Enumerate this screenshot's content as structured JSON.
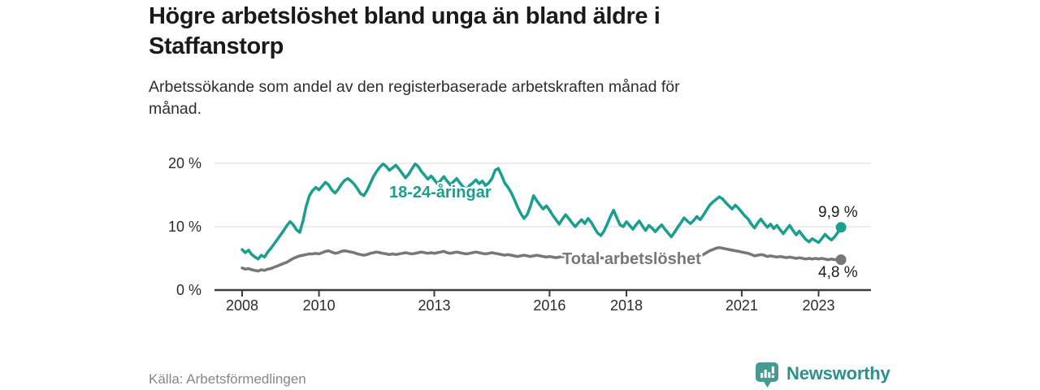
{
  "header": {
    "title": "Högre arbetslöshet bland unga än bland äldre i\nStaffanstorp",
    "subtitle": "Arbetssökande som andel av den registerbaserade arbetskraften månad för\nmånad."
  },
  "footer": {
    "source": "Källa: Arbetsförmedlingen",
    "brand_name": "Newsworthy",
    "brand_text_color": "#2d918b",
    "brand_icon_color": "#479a93"
  },
  "chart_data": {
    "type": "line",
    "x_unit": "month",
    "x_start": "2008-01",
    "x_end": "2023-08",
    "grid": "horizontal",
    "ylim": [
      0,
      22
    ],
    "axis_color": "#3c3c3c",
    "grid_color": "#d9d9d9",
    "y_ticks": [
      {
        "label": "0 %",
        "value": 0
      },
      {
        "label": "10 %",
        "value": 10
      },
      {
        "label": "20 %",
        "value": 20
      }
    ],
    "x_ticks": [
      {
        "label": "2008",
        "year": 2008
      },
      {
        "label": "2010",
        "year": 2010
      },
      {
        "label": "2013",
        "year": 2013
      },
      {
        "label": "2016",
        "year": 2016
      },
      {
        "label": "2018",
        "year": 2018
      },
      {
        "label": "2021",
        "year": 2021
      },
      {
        "label": "2023",
        "year": 2023
      }
    ],
    "series": [
      {
        "name": "18-24-åringar",
        "color": "#1a9e8d",
        "end_label": "9,9 %",
        "end_value": 9.9,
        "values": [
          6.4,
          5.9,
          6.3,
          5.6,
          5.2,
          4.9,
          5.5,
          5.2,
          6.0,
          6.6,
          7.3,
          8.0,
          8.7,
          9.4,
          10.2,
          10.8,
          10.3,
          9.5,
          9.1,
          10.9,
          13.2,
          14.9,
          15.7,
          16.2,
          15.8,
          16.4,
          17.0,
          16.6,
          15.8,
          15.3,
          15.9,
          16.7,
          17.3,
          17.6,
          17.2,
          16.7,
          16.0,
          15.2,
          14.9,
          15.7,
          16.8,
          17.9,
          18.7,
          19.4,
          19.9,
          19.5,
          18.9,
          19.3,
          19.7,
          19.1,
          18.4,
          17.7,
          18.3,
          19.1,
          19.9,
          19.5,
          18.7,
          18.1,
          17.5,
          18.0,
          17.4,
          16.8,
          17.3,
          17.9,
          17.2,
          16.6,
          17.1,
          17.6,
          16.9,
          16.3,
          15.9,
          16.5,
          16.9,
          17.4,
          16.8,
          17.2,
          16.5,
          16.9,
          17.6,
          18.9,
          19.2,
          18.1,
          16.9,
          16.2,
          15.4,
          14.3,
          13.1,
          12.1,
          11.3,
          11.9,
          13.2,
          14.9,
          14.1,
          13.4,
          12.8,
          13.3,
          12.6,
          11.8,
          11.1,
          10.4,
          11.2,
          11.9,
          11.3,
          10.6,
          10.0,
          10.6,
          11.1,
          10.5,
          11.3,
          10.7,
          9.8,
          9.0,
          8.6,
          9.3,
          10.4,
          11.6,
          12.6,
          11.4,
          10.3,
          10.0,
          10.8,
          10.2,
          9.6,
          10.3,
          10.9,
          10.1,
          9.4,
          10.2,
          9.8,
          9.2,
          9.8,
          10.3,
          9.6,
          9.0,
          8.4,
          9.1,
          9.9,
          10.6,
          11.4,
          10.9,
          10.5,
          11.0,
          11.6,
          11.1,
          11.8,
          12.6,
          13.4,
          13.9,
          14.3,
          14.7,
          14.4,
          13.8,
          13.3,
          12.8,
          13.4,
          12.9,
          12.3,
          11.7,
          11.2,
          10.4,
          9.8,
          10.6,
          11.2,
          10.5,
          9.9,
          10.4,
          9.7,
          10.2,
          9.5,
          8.9,
          9.6,
          10.2,
          9.4,
          8.7,
          9.3,
          8.6,
          8.0,
          7.6,
          8.1,
          7.8,
          7.5,
          8.1,
          8.8,
          8.3,
          7.9,
          8.4,
          9.1,
          9.9
        ]
      },
      {
        "name": "Total arbetslöshet",
        "color": "#76777a",
        "end_label": "4,8 %",
        "end_value": 4.8,
        "values": [
          3.5,
          3.3,
          3.4,
          3.2,
          3.1,
          3.0,
          3.2,
          3.1,
          3.3,
          3.4,
          3.6,
          3.8,
          4.0,
          4.2,
          4.4,
          4.7,
          5.0,
          5.2,
          5.4,
          5.5,
          5.6,
          5.7,
          5.7,
          5.8,
          5.7,
          5.9,
          6.1,
          6.2,
          6.0,
          5.8,
          5.9,
          6.1,
          6.2,
          6.1,
          6.0,
          5.9,
          5.7,
          5.6,
          5.5,
          5.6,
          5.8,
          5.9,
          6.0,
          5.9,
          5.8,
          5.7,
          5.6,
          5.7,
          5.6,
          5.7,
          5.8,
          5.9,
          5.8,
          5.7,
          5.8,
          5.9,
          6.0,
          5.9,
          5.8,
          5.9,
          5.8,
          5.9,
          6.0,
          6.1,
          5.9,
          5.8,
          5.9,
          6.0,
          5.9,
          5.8,
          5.7,
          5.8,
          5.9,
          6.0,
          5.9,
          5.8,
          5.7,
          5.8,
          5.9,
          5.8,
          5.7,
          5.6,
          5.5,
          5.6,
          5.5,
          5.4,
          5.3,
          5.4,
          5.5,
          5.4,
          5.3,
          5.4,
          5.5,
          5.4,
          5.3,
          5.2,
          5.3,
          5.2,
          5.1,
          5.2,
          5.3,
          5.2,
          5.1,
          5.0,
          5.1,
          5.2,
          5.1,
          5.0,
          5.1,
          5.0,
          4.9,
          5.0,
          5.1,
          5.0,
          4.9,
          5.0,
          5.1,
          5.2,
          5.1,
          5.0,
          5.1,
          5.0,
          4.9,
          5.0,
          5.1,
          5.0,
          4.9,
          4.8,
          4.9,
          5.0,
          4.9,
          5.0,
          5.1,
          5.0,
          5.1,
          5.2,
          5.1,
          5.2,
          5.3,
          5.2,
          5.1,
          5.2,
          5.3,
          5.4,
          5.6,
          5.9,
          6.2,
          6.4,
          6.6,
          6.7,
          6.6,
          6.5,
          6.4,
          6.3,
          6.2,
          6.1,
          6.0,
          5.9,
          5.8,
          5.6,
          5.4,
          5.5,
          5.6,
          5.5,
          5.3,
          5.4,
          5.3,
          5.2,
          5.3,
          5.2,
          5.1,
          5.2,
          5.1,
          5.0,
          5.1,
          5.0,
          4.9,
          5.0,
          4.9,
          5.0,
          4.9,
          5.0,
          4.9,
          4.8,
          4.9,
          4.8,
          4.9,
          4.8
        ]
      }
    ]
  }
}
